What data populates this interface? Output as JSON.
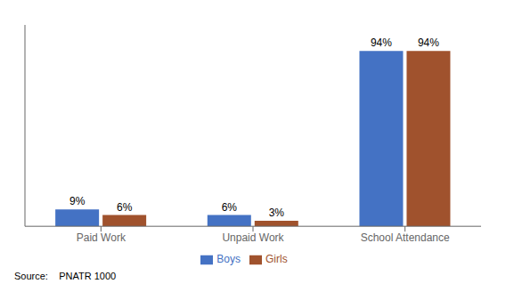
{
  "chart_data": {
    "type": "bar",
    "categories": [
      "Paid Work",
      "Unpaid Work",
      "School Attendance"
    ],
    "series": [
      {
        "name": "Boys",
        "color": "#4472C4",
        "values": [
          9,
          6,
          94
        ],
        "value_labels": [
          "9%",
          "6%",
          "94%"
        ]
      },
      {
        "name": "Girls",
        "color": "#A0522D",
        "values": [
          6,
          3,
          94
        ],
        "value_labels": [
          "6%",
          "3%",
          "94%"
        ]
      }
    ],
    "ylim": [
      0,
      108
    ],
    "yticks": [],
    "data_labels": true,
    "tick_labels": "x",
    "legend": "bottom",
    "grid": false,
    "annotations": [
      "Source:    PNATR 1000"
    ]
  }
}
